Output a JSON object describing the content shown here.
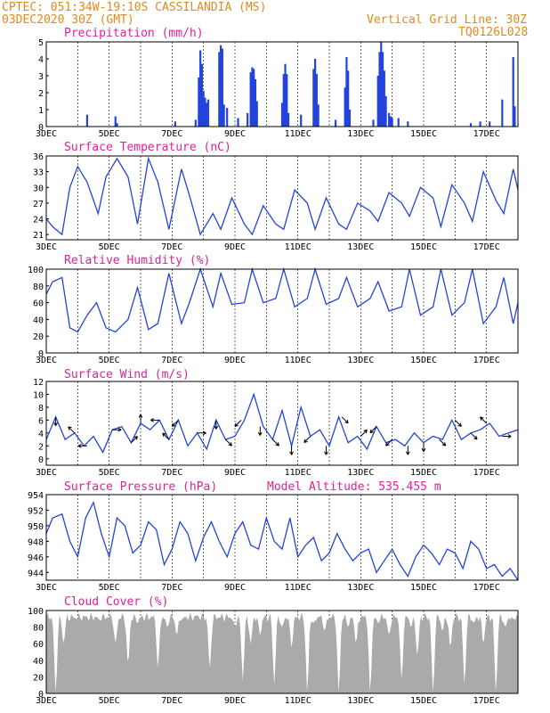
{
  "header": {
    "line1": "CPTEC:   051:34W-19:10S   CASSILANDIA (MS)",
    "line2": "03DEC2020 30Z (GMT)",
    "grid_note": "Vertical Grid Line: 30Z",
    "model_id": "TQ0126L028"
  },
  "x_labels": [
    "3DEC",
    "5DEC",
    "7DEC",
    "9DEC",
    "11DEC",
    "13DEC",
    "15DEC",
    "17DEC"
  ],
  "chart_data": [
    {
      "type": "bar",
      "title": "Precipitation (mm/h)",
      "ylim": [
        0,
        5
      ],
      "yticks": [
        0,
        1,
        2,
        3,
        4,
        5
      ],
      "events": [
        [
          4.3,
          0.7
        ],
        [
          5.2,
          0.6
        ],
        [
          5.25,
          0.2
        ],
        [
          7.1,
          0.3
        ],
        [
          7.75,
          0.4
        ],
        [
          7.85,
          2.9
        ],
        [
          7.9,
          4.5
        ],
        [
          7.95,
          3.7
        ],
        [
          8.0,
          2.1
        ],
        [
          8.05,
          1.7
        ],
        [
          8.1,
          1.4
        ],
        [
          8.15,
          1.6
        ],
        [
          8.5,
          4.4
        ],
        [
          8.55,
          4.8
        ],
        [
          8.6,
          4.6
        ],
        [
          8.65,
          1.3
        ],
        [
          8.75,
          1.1
        ],
        [
          9.1,
          0.5
        ],
        [
          9.4,
          0.8
        ],
        [
          9.5,
          3.2
        ],
        [
          9.55,
          3.5
        ],
        [
          9.6,
          3.4
        ],
        [
          9.65,
          2.8
        ],
        [
          9.7,
          1.5
        ],
        [
          10.5,
          1.4
        ],
        [
          10.55,
          3.1
        ],
        [
          10.6,
          3.7
        ],
        [
          10.65,
          3.1
        ],
        [
          10.7,
          0.8
        ],
        [
          11.1,
          0.7
        ],
        [
          11.5,
          3.4
        ],
        [
          11.55,
          4.0
        ],
        [
          11.6,
          3.1
        ],
        [
          11.65,
          1.3
        ],
        [
          12.2,
          0.4
        ],
        [
          12.5,
          2.3
        ],
        [
          12.55,
          4.1
        ],
        [
          12.6,
          3.3
        ],
        [
          12.65,
          1.0
        ],
        [
          13.4,
          0.4
        ],
        [
          13.55,
          3.0
        ],
        [
          13.6,
          4.4
        ],
        [
          13.65,
          5.0
        ],
        [
          13.7,
          4.4
        ],
        [
          13.75,
          3.3
        ],
        [
          13.8,
          1.8
        ],
        [
          13.9,
          0.8
        ],
        [
          13.95,
          0.6
        ],
        [
          14.0,
          0.5
        ],
        [
          14.2,
          0.5
        ],
        [
          14.5,
          0.3
        ],
        [
          16.5,
          0.2
        ],
        [
          16.8,
          0.3
        ],
        [
          17.1,
          0.3
        ],
        [
          17.5,
          1.6
        ],
        [
          17.85,
          4.1
        ],
        [
          17.9,
          1.2
        ]
      ]
    },
    {
      "type": "line",
      "title": "Surface Temperature (nC)",
      "ylim": [
        20,
        36
      ],
      "yticks": [
        21,
        24,
        27,
        30,
        33,
        36
      ],
      "x": [
        3.0,
        3.2,
        3.5,
        3.75,
        4.0,
        4.3,
        4.65,
        4.9,
        5.25,
        5.6,
        5.9,
        6.25,
        6.55,
        6.9,
        7.3,
        7.55,
        7.9,
        8.3,
        8.55,
        8.9,
        9.3,
        9.55,
        9.9,
        10.3,
        10.55,
        10.9,
        11.3,
        11.55,
        11.9,
        12.3,
        12.55,
        12.9,
        13.3,
        13.55,
        13.9,
        14.3,
        14.55,
        14.9,
        15.3,
        15.55,
        15.9,
        16.3,
        16.55,
        16.9,
        17.3,
        17.55,
        17.85,
        18.0
      ],
      "values": [
        24.0,
        22.5,
        21.0,
        30.0,
        34.0,
        31.0,
        25.0,
        32.0,
        35.5,
        32.0,
        23.0,
        35.5,
        31.0,
        22.0,
        33.5,
        28.5,
        21.0,
        25.0,
        22.0,
        28.0,
        23.0,
        21.0,
        26.5,
        23.0,
        22.0,
        29.5,
        27.0,
        22.0,
        28.0,
        23.0,
        22.0,
        27.0,
        25.5,
        23.5,
        29.0,
        27.0,
        24.5,
        30.0,
        28.0,
        22.5,
        30.5,
        27.0,
        23.5,
        33.0,
        27.5,
        25.0,
        33.5,
        29.5
      ]
    },
    {
      "type": "line",
      "title": "Relative Humidity (%)",
      "ylim": [
        0,
        100
      ],
      "yticks": [
        0,
        20,
        40,
        60,
        80,
        100
      ],
      "x": [
        3.0,
        3.2,
        3.5,
        3.75,
        4.0,
        4.3,
        4.6,
        4.9,
        5.2,
        5.6,
        5.9,
        6.25,
        6.55,
        6.9,
        7.3,
        7.55,
        7.9,
        8.3,
        8.55,
        8.9,
        9.3,
        9.55,
        9.9,
        10.3,
        10.55,
        10.9,
        11.3,
        11.55,
        11.9,
        12.3,
        12.55,
        12.9,
        13.3,
        13.55,
        13.9,
        14.3,
        14.55,
        14.9,
        15.3,
        15.55,
        15.9,
        16.3,
        16.55,
        16.9,
        17.3,
        17.55,
        17.85,
        18.0
      ],
      "values": [
        70,
        85,
        90,
        30,
        25,
        45,
        60,
        30,
        25,
        40,
        78,
        28,
        35,
        95,
        35,
        60,
        100,
        55,
        95,
        58,
        60,
        100,
        60,
        65,
        100,
        55,
        65,
        100,
        58,
        65,
        90,
        55,
        65,
        85,
        50,
        55,
        100,
        45,
        55,
        100,
        45,
        60,
        100,
        35,
        55,
        90,
        35,
        60
      ]
    },
    {
      "type": "line",
      "title": "Surface Wind (m/s)",
      "ylim": [
        -1,
        12
      ],
      "yticks": [
        0,
        2,
        4,
        6,
        8,
        10,
        12
      ],
      "x": [
        3.0,
        3.3,
        3.6,
        3.9,
        4.2,
        4.5,
        4.8,
        5.1,
        5.4,
        5.7,
        6.0,
        6.3,
        6.6,
        6.9,
        7.2,
        7.5,
        7.8,
        8.1,
        8.4,
        8.7,
        9.0,
        9.3,
        9.6,
        9.9,
        10.2,
        10.5,
        10.8,
        11.1,
        11.4,
        11.7,
        12.0,
        12.3,
        12.6,
        12.9,
        13.2,
        13.5,
        13.8,
        14.1,
        14.4,
        14.7,
        15.0,
        15.3,
        15.6,
        15.9,
        16.2,
        16.5,
        16.8,
        17.1,
        17.4,
        17.7,
        18.0
      ],
      "values": [
        3.0,
        6.5,
        3.0,
        4.0,
        2.0,
        3.5,
        1.0,
        4.5,
        5.0,
        2.5,
        5.5,
        4.5,
        6.0,
        3.0,
        6.0,
        2.0,
        4.0,
        1.5,
        6.0,
        3.0,
        3.5,
        6.0,
        10.0,
        5.0,
        3.0,
        7.5,
        2.0,
        8.0,
        3.5,
        4.5,
        2.0,
        6.5,
        2.5,
        3.5,
        1.5,
        5.0,
        2.5,
        3.0,
        2.0,
        4.0,
        2.5,
        3.5,
        3.0,
        6.0,
        3.0,
        4.0,
        4.5,
        5.5,
        3.5,
        4.0,
        4.5
      ],
      "vectors": [
        {
          "x": 3.3,
          "dir": "S"
        },
        {
          "x": 3.9,
          "dir": "NW"
        },
        {
          "x": 4.3,
          "dir": "W"
        },
        {
          "x": 5.1,
          "dir": "E"
        },
        {
          "x": 5.7,
          "dir": "NE"
        },
        {
          "x": 6.0,
          "dir": "N"
        },
        {
          "x": 6.6,
          "dir": "W"
        },
        {
          "x": 6.9,
          "dir": "NW"
        },
        {
          "x": 7.2,
          "dir": "SW"
        },
        {
          "x": 7.8,
          "dir": "E"
        },
        {
          "x": 8.4,
          "dir": "S"
        },
        {
          "x": 8.7,
          "dir": "SE"
        },
        {
          "x": 9.2,
          "dir": "SW"
        },
        {
          "x": 9.8,
          "dir": "S"
        },
        {
          "x": 10.2,
          "dir": "SE"
        },
        {
          "x": 10.8,
          "dir": "S"
        },
        {
          "x": 11.4,
          "dir": "SW"
        },
        {
          "x": 11.9,
          "dir": "S"
        },
        {
          "x": 12.4,
          "dir": "SE"
        },
        {
          "x": 13.0,
          "dir": "NE"
        },
        {
          "x": 13.5,
          "dir": "SW"
        },
        {
          "x": 14.0,
          "dir": "SW"
        },
        {
          "x": 14.5,
          "dir": "S"
        },
        {
          "x": 15.0,
          "dir": "S"
        },
        {
          "x": 15.5,
          "dir": "SE"
        },
        {
          "x": 16.0,
          "dir": "SE"
        },
        {
          "x": 16.5,
          "dir": "SE"
        },
        {
          "x": 17.0,
          "dir": "NW"
        },
        {
          "x": 17.5,
          "dir": "E"
        }
      ]
    },
    {
      "type": "line",
      "title": "Surface Pressure (hPa)",
      "subtitle": "Model Altitude: 535.455 m",
      "ylim": [
        943,
        954
      ],
      "yticks": [
        944,
        946,
        948,
        950,
        952,
        954
      ],
      "x": [
        3.0,
        3.2,
        3.5,
        3.75,
        4.0,
        4.25,
        4.5,
        4.75,
        5.0,
        5.25,
        5.5,
        5.75,
        6.0,
        6.25,
        6.5,
        6.75,
        7.0,
        7.25,
        7.5,
        7.75,
        8.0,
        8.25,
        8.5,
        8.75,
        9.0,
        9.25,
        9.5,
        9.75,
        10.0,
        10.25,
        10.5,
        10.75,
        11.0,
        11.25,
        11.5,
        11.75,
        12.0,
        12.25,
        12.5,
        12.75,
        13.0,
        13.25,
        13.5,
        13.75,
        14.0,
        14.25,
        14.5,
        14.75,
        15.0,
        15.25,
        15.5,
        15.75,
        16.0,
        16.25,
        16.5,
        16.75,
        17.0,
        17.25,
        17.5,
        17.75,
        18.0
      ],
      "values": [
        949.0,
        951.0,
        951.5,
        948.0,
        946.0,
        951.0,
        953.0,
        949.0,
        946.0,
        951.0,
        950.0,
        946.5,
        947.5,
        950.5,
        949.5,
        945.0,
        947.0,
        950.5,
        949.0,
        945.5,
        948.5,
        950.5,
        948.0,
        946.0,
        949.0,
        950.5,
        947.5,
        947.0,
        951.0,
        948.0,
        947.0,
        951.0,
        946.0,
        947.5,
        948.5,
        945.5,
        946.5,
        949.0,
        947.0,
        945.5,
        946.5,
        947.0,
        944.0,
        945.5,
        947.0,
        945.0,
        943.5,
        946.0,
        947.5,
        946.5,
        945.0,
        947.0,
        946.5,
        944.5,
        948.0,
        947.0,
        944.5,
        945.0,
        943.5,
        944.5,
        943.0
      ]
    },
    {
      "type": "area",
      "title": "Cloud Cover (%)",
      "ylim": [
        0,
        100
      ],
      "yticks": [
        0,
        20,
        40,
        60,
        80,
        100
      ],
      "base": 92,
      "dips": [
        [
          3.3,
          0
        ],
        [
          3.55,
          60
        ],
        [
          3.95,
          90
        ],
        [
          4.7,
          88
        ],
        [
          5.2,
          60
        ],
        [
          5.6,
          35
        ],
        [
          5.9,
          85
        ],
        [
          6.55,
          30
        ],
        [
          6.85,
          80
        ],
        [
          7.15,
          70
        ],
        [
          7.3,
          88
        ],
        [
          7.8,
          94
        ],
        [
          8.2,
          30
        ],
        [
          9.0,
          80
        ],
        [
          9.25,
          15
        ],
        [
          9.5,
          60
        ],
        [
          9.8,
          70
        ],
        [
          10.25,
          10
        ],
        [
          10.5,
          80
        ],
        [
          10.8,
          55
        ],
        [
          11.3,
          0
        ],
        [
          11.5,
          85
        ],
        [
          11.85,
          75
        ],
        [
          12.3,
          0
        ],
        [
          12.6,
          80
        ],
        [
          12.85,
          60
        ],
        [
          13.3,
          0
        ],
        [
          13.55,
          85
        ],
        [
          13.9,
          70
        ],
        [
          14.3,
          15
        ],
        [
          14.6,
          80
        ],
        [
          14.8,
          45
        ],
        [
          15.3,
          0
        ],
        [
          15.6,
          75
        ],
        [
          15.85,
          55
        ],
        [
          16.3,
          10
        ],
        [
          16.6,
          85
        ],
        [
          16.9,
          60
        ],
        [
          17.3,
          0
        ],
        [
          17.6,
          80
        ],
        [
          17.85,
          90
        ]
      ]
    }
  ]
}
